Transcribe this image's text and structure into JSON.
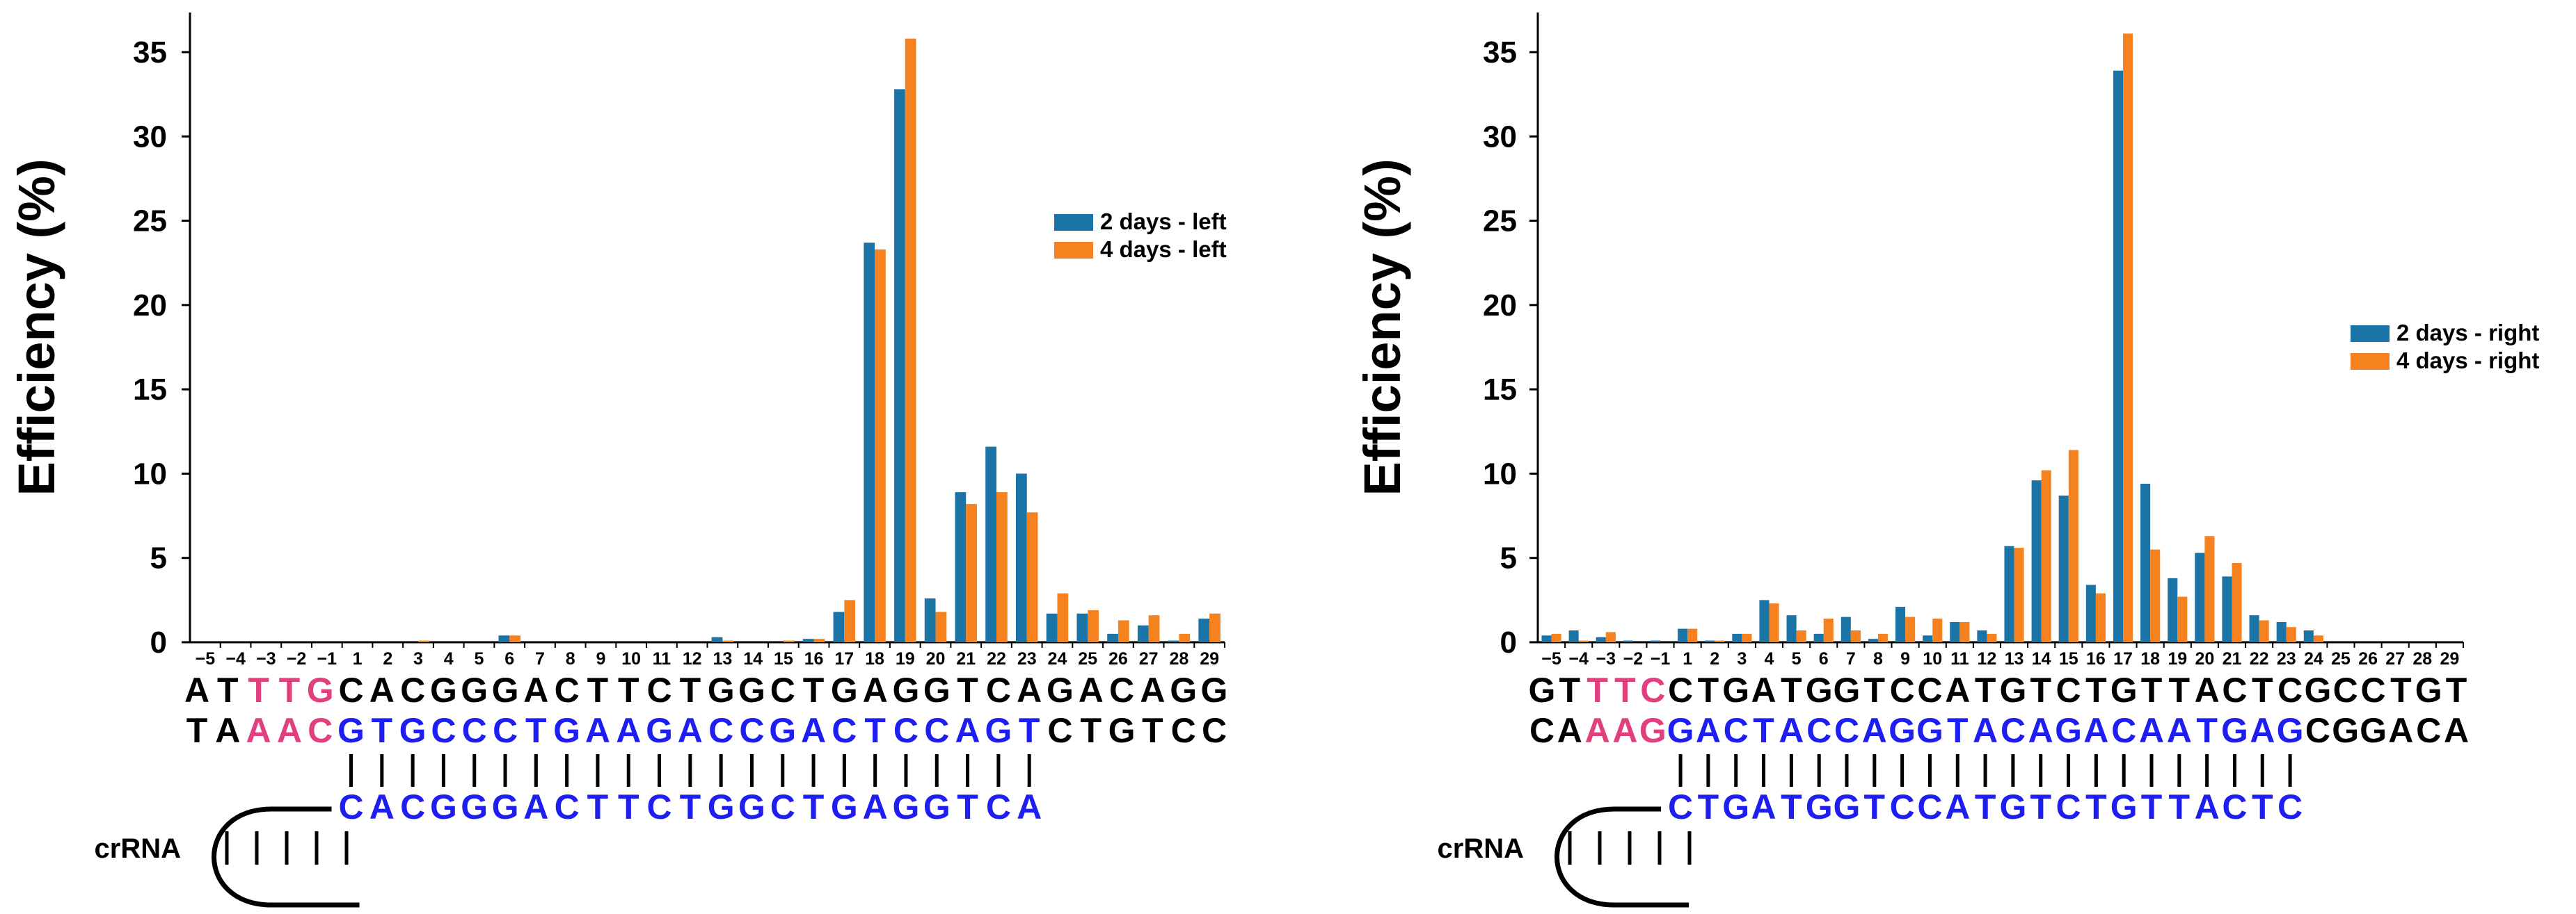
{
  "colors": {
    "series1": "#1a74a6",
    "series2": "#f5821f",
    "pam": "#e0407e",
    "target": "#1e1ef0",
    "black": "#000000"
  },
  "y_axis": {
    "label": "Efficiency (%)",
    "ticks": [
      "0",
      "5",
      "10",
      "15",
      "20",
      "25",
      "30",
      "35"
    ]
  },
  "chart_data": [
    {
      "type": "bar",
      "title": "",
      "xlabel": "",
      "ylabel": "Efficiency (%)",
      "ylim": [
        0,
        37
      ],
      "categories": [
        "−5",
        "−4",
        "−3",
        "−2",
        "−1",
        "1",
        "2",
        "3",
        "4",
        "5",
        "6",
        "7",
        "8",
        "9",
        "10",
        "11",
        "12",
        "13",
        "14",
        "15",
        "16",
        "17",
        "18",
        "19",
        "20",
        "21",
        "22",
        "23",
        "24",
        "25",
        "26",
        "27",
        "28",
        "29"
      ],
      "legend_position": "right",
      "series": [
        {
          "name": "2 days - left",
          "values": [
            0,
            0,
            0,
            0,
            0,
            0,
            0,
            0,
            0,
            0,
            0.4,
            0,
            0,
            0,
            0,
            0,
            0,
            0.3,
            0,
            0,
            0.2,
            1.8,
            23.7,
            32.8,
            2.6,
            8.9,
            11.6,
            10.0,
            1.7,
            1.7,
            0.5,
            1.0,
            0.1,
            1.4
          ]
        },
        {
          "name": "4 days - left",
          "values": [
            0,
            0,
            0,
            0,
            0,
            0,
            0,
            0.1,
            0,
            0,
            0.4,
            0,
            0,
            0,
            0,
            0,
            0,
            0.1,
            0,
            0.1,
            0.2,
            2.5,
            23.3,
            35.8,
            1.8,
            8.2,
            8.9,
            7.7,
            2.9,
            1.9,
            1.3,
            1.6,
            0.5,
            1.7
          ]
        }
      ],
      "sequence": {
        "top_strand": [
          "A",
          "T",
          "T",
          "T",
          "G",
          "C",
          "A",
          "C",
          "G",
          "G",
          "G",
          "A",
          "C",
          "T",
          "T",
          "C",
          "T",
          "G",
          "G",
          "C",
          "T",
          "G",
          "A",
          "G",
          "G",
          "T",
          "C",
          "A",
          "G",
          "A",
          "C",
          "A",
          "G",
          "G"
        ],
        "bottom_strand": [
          "T",
          "A",
          "A",
          "A",
          "C",
          "G",
          "T",
          "G",
          "C",
          "C",
          "C",
          "T",
          "G",
          "A",
          "A",
          "G",
          "A",
          "C",
          "C",
          "G",
          "A",
          "C",
          "T",
          "C",
          "C",
          "A",
          "G",
          "T",
          "C",
          "T",
          "G",
          "T",
          "C",
          "C"
        ],
        "pam_top_indices": [
          2,
          3,
          4
        ],
        "pam_bottom_indices": [
          2,
          3,
          4
        ],
        "target_start": 5,
        "target_end": 27,
        "crRNA_seq": [
          "C",
          "A",
          "C",
          "G",
          "G",
          "G",
          "A",
          "C",
          "T",
          "T",
          "C",
          "T",
          "G",
          "G",
          "C",
          "T",
          "G",
          "A",
          "G",
          "G",
          "T",
          "C",
          "A"
        ],
        "crRNA_label": "crRNA"
      }
    },
    {
      "type": "bar",
      "title": "",
      "xlabel": "",
      "ylabel": "Efficiency (%)",
      "ylim": [
        0,
        37
      ],
      "categories": [
        "−5",
        "−4",
        "−3",
        "−2",
        "−1",
        "1",
        "2",
        "3",
        "4",
        "5",
        "6",
        "7",
        "8",
        "9",
        "10",
        "11",
        "12",
        "13",
        "14",
        "15",
        "16",
        "17",
        "18",
        "19",
        "20",
        "21",
        "22",
        "23",
        "24",
        "25",
        "26",
        "27",
        "28",
        "29"
      ],
      "legend_position": "right",
      "series": [
        {
          "name": "2 days - right",
          "values": [
            0.4,
            0.7,
            0.3,
            0.1,
            0.1,
            0.8,
            0.1,
            0.5,
            2.5,
            1.6,
            0.5,
            1.5,
            0.2,
            2.1,
            0.4,
            1.2,
            0.7,
            5.7,
            9.6,
            8.7,
            3.4,
            33.9,
            9.4,
            3.8,
            5.3,
            3.9,
            1.6,
            1.2,
            0.7,
            0,
            0,
            0,
            0,
            0
          ]
        },
        {
          "name": "4 days - right",
          "values": [
            0.5,
            0.1,
            0.6,
            0,
            0,
            0.8,
            0.1,
            0.5,
            2.3,
            0.7,
            1.4,
            0.7,
            0.5,
            1.5,
            1.4,
            1.2,
            0.5,
            5.6,
            10.2,
            11.4,
            2.9,
            36.1,
            5.5,
            2.7,
            6.3,
            4.7,
            1.3,
            0.9,
            0.4,
            0,
            0,
            0,
            0,
            0
          ]
        }
      ],
      "sequence": {
        "top_strand": [
          "G",
          "T",
          "T",
          "T",
          "C",
          "C",
          "T",
          "G",
          "A",
          "T",
          "G",
          "G",
          "T",
          "C",
          "C",
          "A",
          "T",
          "G",
          "T",
          "C",
          "T",
          "G",
          "T",
          "T",
          "A",
          "C",
          "T",
          "C",
          "G",
          "C",
          "C",
          "T",
          "G",
          "T"
        ],
        "bottom_strand": [
          "C",
          "A",
          "A",
          "A",
          "G",
          "G",
          "A",
          "C",
          "T",
          "A",
          "C",
          "C",
          "A",
          "G",
          "G",
          "T",
          "A",
          "C",
          "A",
          "G",
          "A",
          "C",
          "A",
          "A",
          "T",
          "G",
          "A",
          "G",
          "C",
          "G",
          "G",
          "A",
          "C",
          "A"
        ],
        "pam_top_indices": [
          2,
          3,
          4
        ],
        "pam_bottom_indices": [
          2,
          3,
          4
        ],
        "target_start": 5,
        "target_end": 27,
        "crRNA_seq": [
          "C",
          "T",
          "G",
          "A",
          "T",
          "G",
          "G",
          "T",
          "C",
          "C",
          "A",
          "T",
          "G",
          "T",
          "C",
          "T",
          "G",
          "T",
          "T",
          "A",
          "C",
          "T",
          "C"
        ],
        "crRNA_label": "crRNA"
      }
    }
  ]
}
